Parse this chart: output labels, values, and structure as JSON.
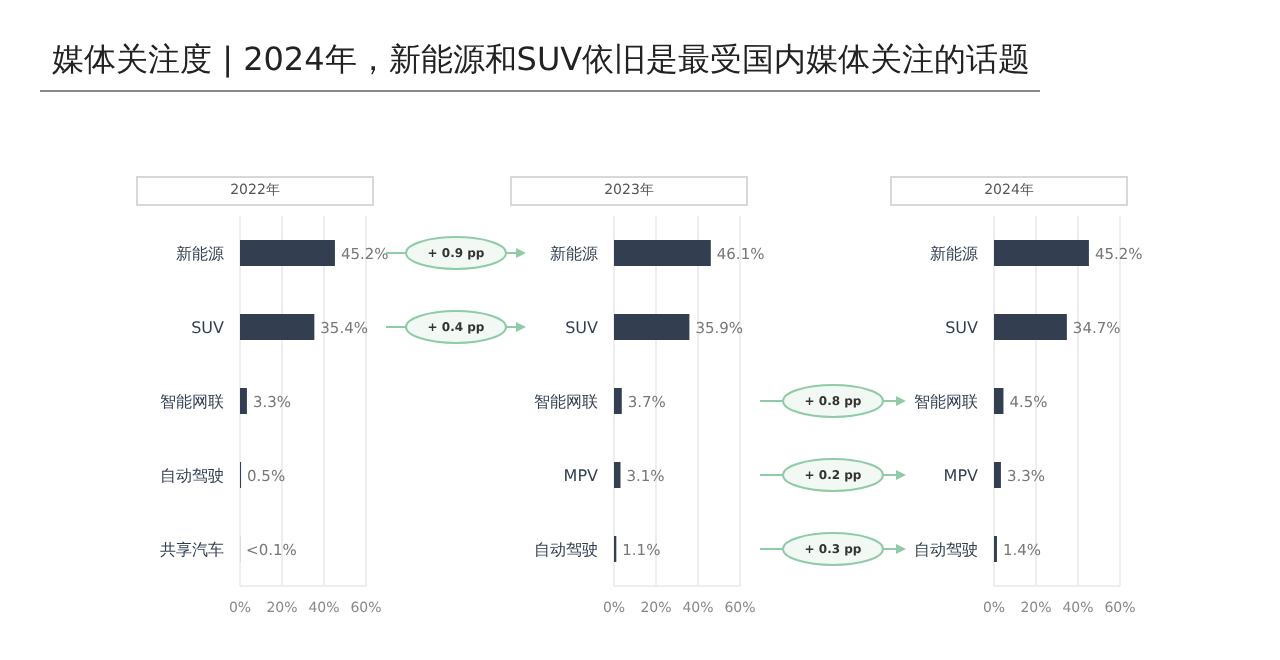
{
  "chart_data": [
    {
      "type": "bar",
      "orientation": "horizontal",
      "title": "媒体关注度 | 2024年，新能源和SUV依旧是最受国内媒体关注的话题",
      "subtitle": "2022年",
      "categories": [
        "新能源",
        "SUV",
        "智能网联",
        "自动驾驶",
        "共享汽车"
      ],
      "values": [
        45.2,
        35.4,
        3.3,
        0.5,
        0.05
      ],
      "value_labels": [
        "45.2%",
        "35.4%",
        "3.3%",
        "0.5%",
        "<0.1%"
      ],
      "color": "#333f50",
      "xlim": [
        0,
        60
      ],
      "xticks": [
        {
          "value": 0,
          "label": "0%"
        },
        {
          "value": 20,
          "label": "20%"
        },
        {
          "value": 40,
          "label": "40%"
        },
        {
          "value": 60,
          "label": "60%"
        }
      ],
      "grid": "x"
    },
    {
      "type": "bar",
      "orientation": "horizontal",
      "subtitle": "2023年",
      "categories": [
        "新能源",
        "SUV",
        "智能网联",
        "MPV",
        "自动驾驶"
      ],
      "values": [
        46.1,
        35.9,
        3.7,
        3.1,
        1.1
      ],
      "value_labels": [
        "46.1%",
        "35.9%",
        "3.7%",
        "3.1%",
        "1.1%"
      ],
      "color": "#333f50",
      "xlim": [
        0,
        60
      ],
      "xticks": [
        {
          "value": 0,
          "label": "0%"
        },
        {
          "value": 20,
          "label": "20%"
        },
        {
          "value": 40,
          "label": "40%"
        },
        {
          "value": 60,
          "label": "60%"
        }
      ],
      "grid": "x",
      "annotations": [
        "+ 0.9 pp",
        "+ 0.4 pp"
      ]
    },
    {
      "type": "bar",
      "orientation": "horizontal",
      "subtitle": "2024年",
      "categories": [
        "新能源",
        "SUV",
        "智能网联",
        "MPV",
        "自动驾驶"
      ],
      "values": [
        45.2,
        34.7,
        4.5,
        3.3,
        1.4
      ],
      "value_labels": [
        "45.2%",
        "34.7%",
        "4.5%",
        "3.3%",
        "1.4%"
      ],
      "color": "#333f50",
      "xlim": [
        0,
        60
      ],
      "xticks": [
        {
          "value": 0,
          "label": "0%"
        },
        {
          "value": 20,
          "label": "20%"
        },
        {
          "value": 40,
          "label": "40%"
        },
        {
          "value": 60,
          "label": "60%"
        }
      ],
      "grid": "x",
      "annotations": [
        "+ 0.8 pp",
        "+ 0.2 pp",
        "+ 0.3 pp"
      ]
    }
  ]
}
